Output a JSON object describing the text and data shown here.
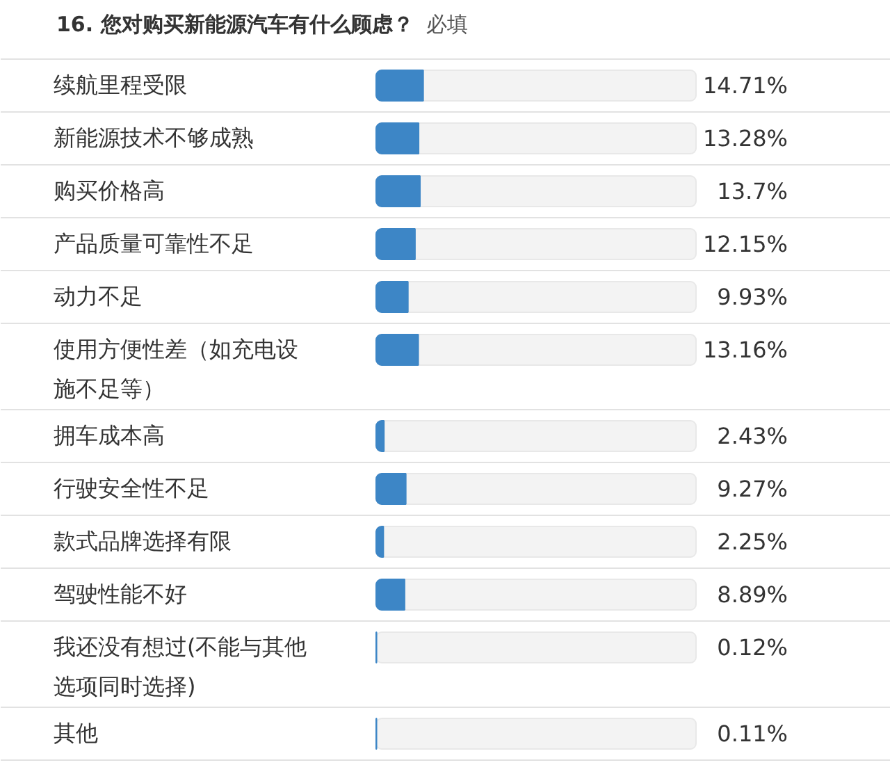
{
  "chart_data": {
    "type": "bar",
    "orientation": "horizontal",
    "title": "16. 您对购买新能源汽车有什么顾虑？",
    "subtitle": "必填",
    "categories": [
      "续航里程受限",
      "新能源技术不够成熟",
      "购买价格高",
      "产品质量可靠性不足",
      "动力不足",
      "使用方便性差（如充电设施不足等）",
      "拥车成本高",
      "行驶安全性不足",
      "款式品牌选择有限",
      "驾驶性能不好",
      "我还没有想过(不能与其他选项同时选择)",
      "其他"
    ],
    "values": [
      14.71,
      13.28,
      13.7,
      12.15,
      9.93,
      13.16,
      2.43,
      9.27,
      2.25,
      8.89,
      0.12,
      0.11
    ],
    "value_labels": [
      "14.71%",
      "13.28%",
      "13.7%",
      "12.15%",
      "9.93%",
      "13.16%",
      "2.43%",
      "9.27%",
      "2.25%",
      "8.89%",
      "0.12%",
      "0.11%"
    ],
    "color": "#3d86c6",
    "xlim": [
      0,
      100
    ],
    "grid": "y",
    "tick_labels": "y"
  }
}
